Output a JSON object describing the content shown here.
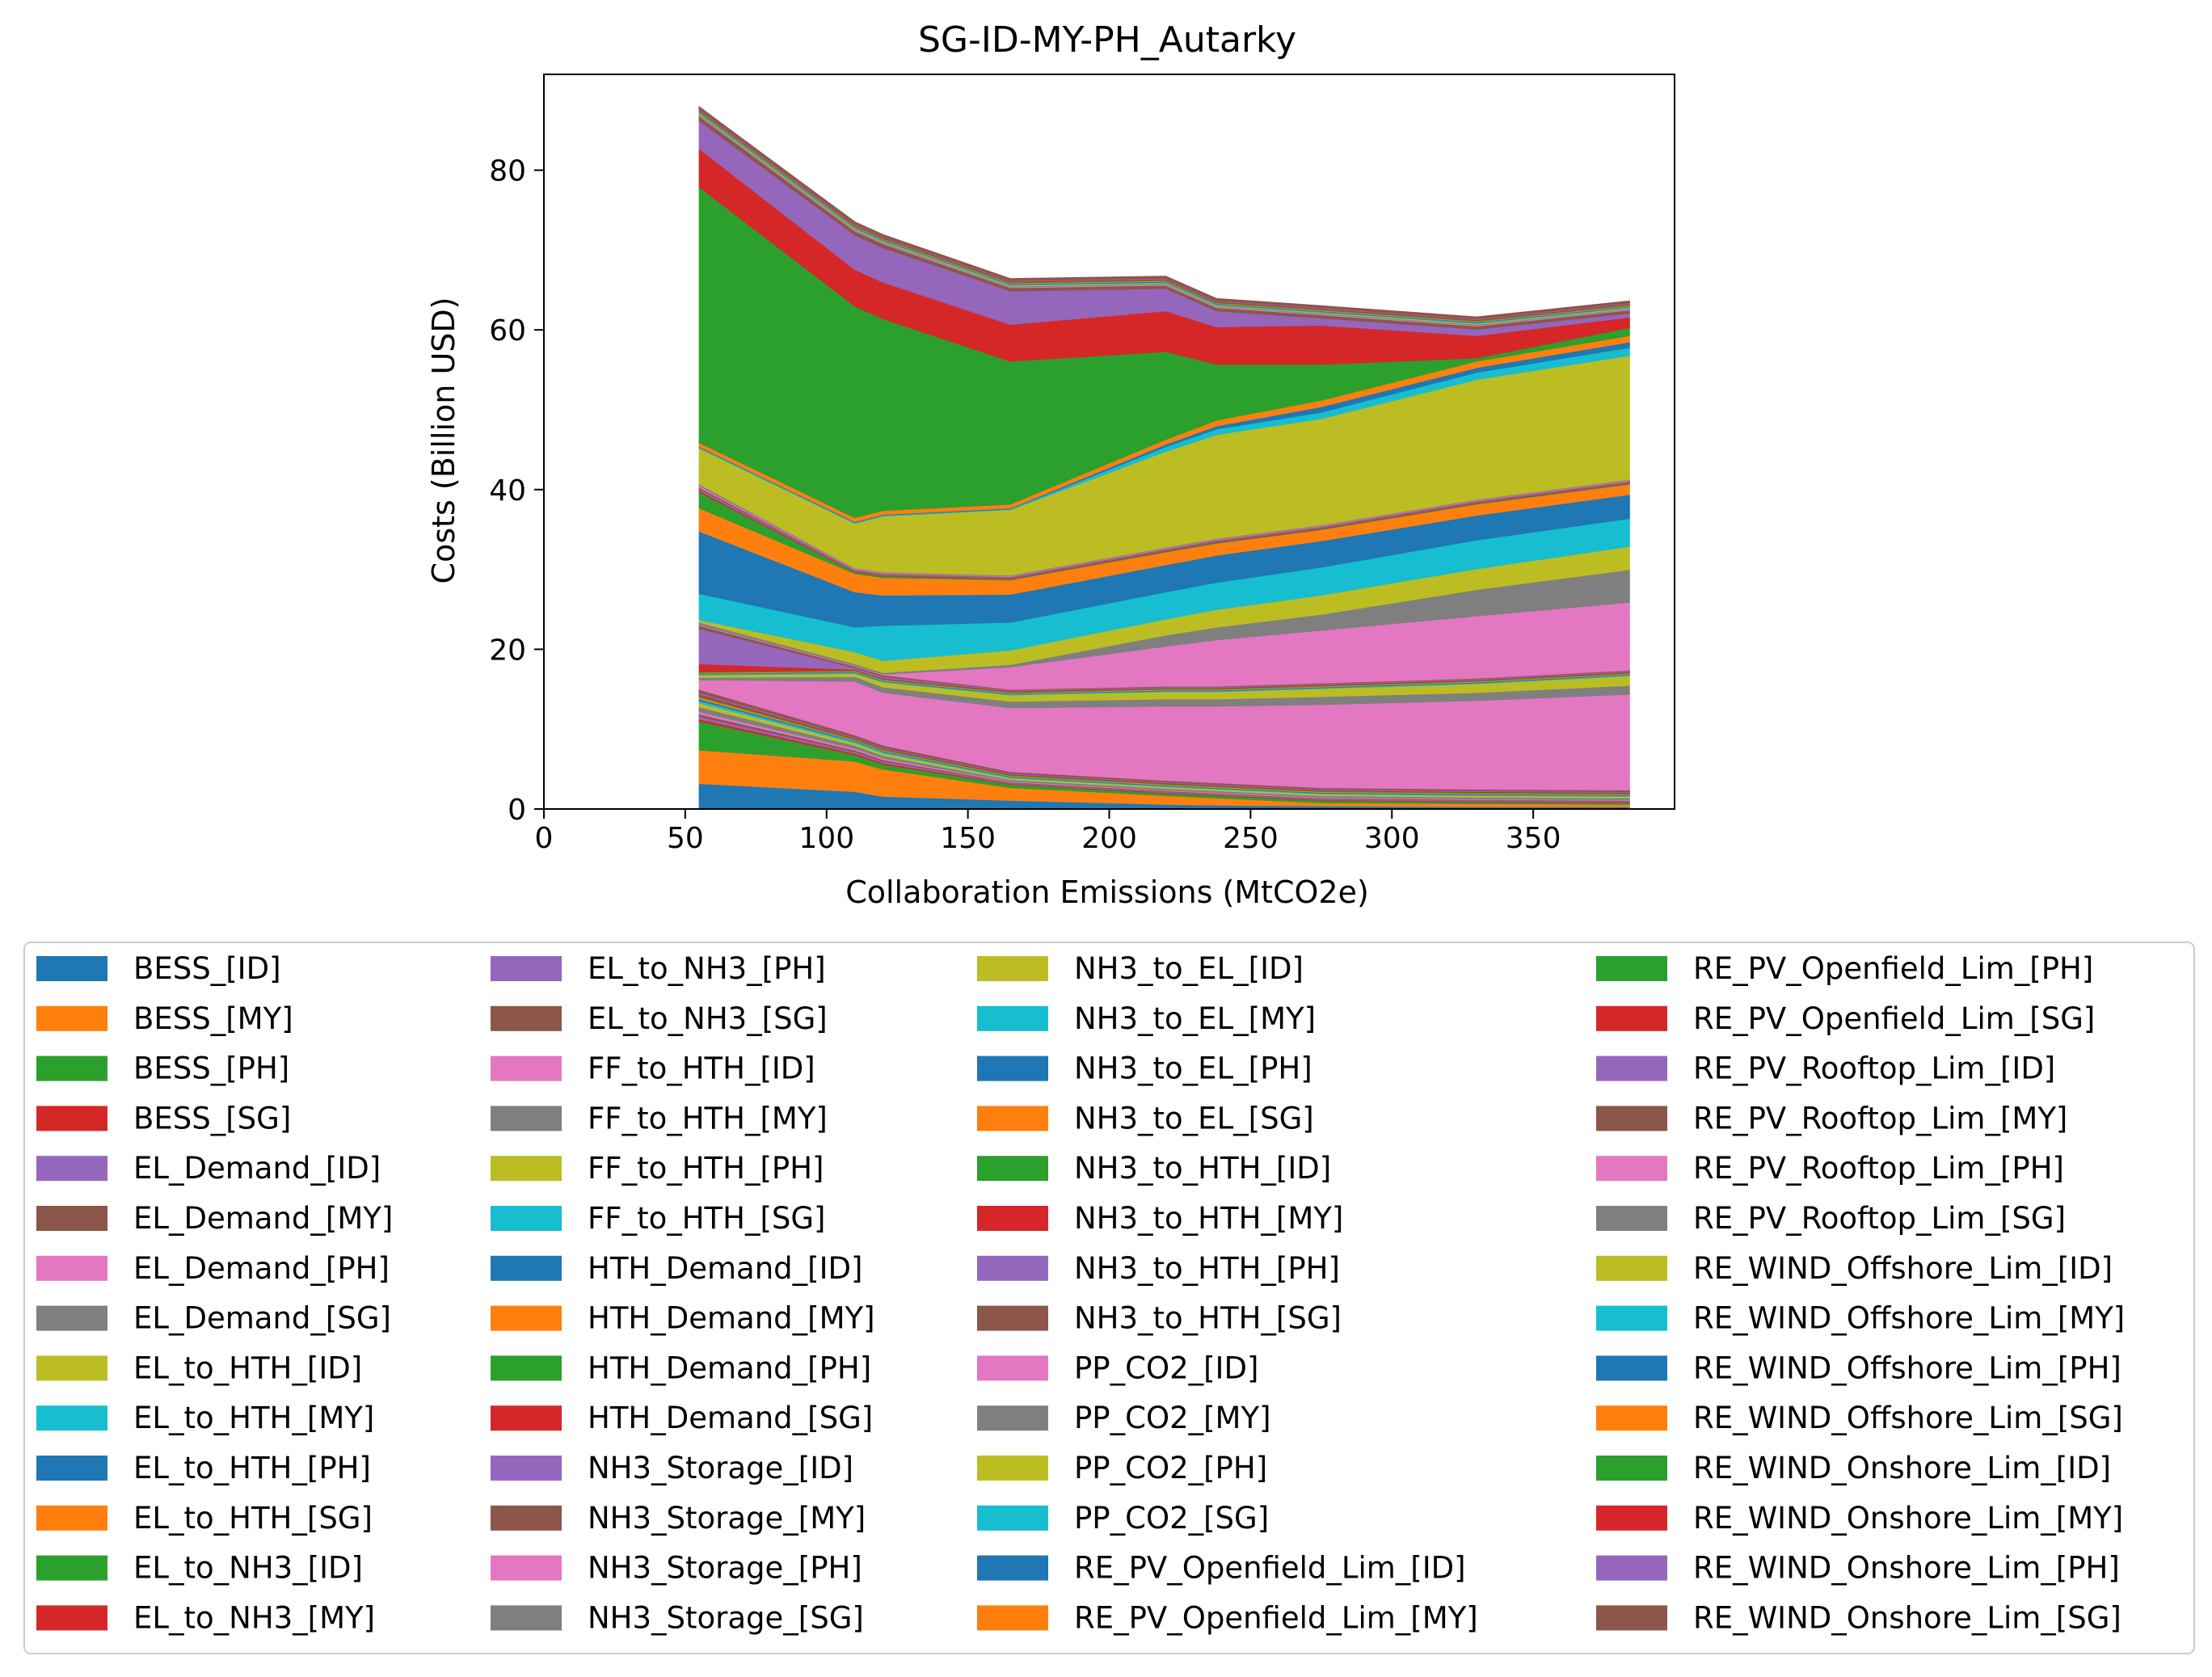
{
  "chart_data": {
    "type": "area",
    "stacked": true,
    "title": "SG-ID-MY-PH_Autarky",
    "xlabel": "Collaboration Emissions (MtCO2e)",
    "ylabel": "Costs (Billion USD)",
    "xlim": [
      0,
      400
    ],
    "ylim": [
      0,
      92
    ],
    "xticks": [
      0,
      50,
      100,
      150,
      200,
      250,
      300,
      350
    ],
    "yticks": [
      0,
      20,
      40,
      60,
      80
    ],
    "grid": false,
    "legend_position": "bottom",
    "x": [
      55,
      110,
      120,
      165,
      220,
      238,
      275,
      330,
      384
    ],
    "series": [
      {
        "name": "BESS_[ID]",
        "color": "#1f77b4",
        "values": [
          3.2,
          2.2,
          1.6,
          1.1,
          0.6,
          0.5,
          0.4,
          0.3,
          0.3
        ]
      },
      {
        "name": "BESS_[MY]",
        "color": "#ff7f0e",
        "values": [
          4.2,
          3.8,
          3.4,
          1.6,
          1.1,
          0.9,
          0.4,
          0.4,
          0.3
        ]
      },
      {
        "name": "BESS_[PH]",
        "color": "#2ca02c",
        "values": [
          3.6,
          0.8,
          0.6,
          0.4,
          0.3,
          0.3,
          0.3,
          0.2,
          0.2
        ]
      },
      {
        "name": "BESS_[SG]",
        "color": "#d62728",
        "values": [
          0.3,
          0.2,
          0.2,
          0.1,
          0.1,
          0.1,
          0.1,
          0.1,
          0.1
        ]
      },
      {
        "name": "EL_Demand_[ID]",
        "color": "#9467bd",
        "values": [
          0.3,
          0.2,
          0.2,
          0.1,
          0.1,
          0.1,
          0.1,
          0.1,
          0.1
        ]
      },
      {
        "name": "EL_Demand_[MY]",
        "color": "#8c564b",
        "values": [
          0.3,
          0.2,
          0.2,
          0.1,
          0.1,
          0.1,
          0.1,
          0.1,
          0.1
        ]
      },
      {
        "name": "EL_Demand_[PH]",
        "color": "#e377c2",
        "values": [
          0.3,
          0.2,
          0.2,
          0.1,
          0.1,
          0.1,
          0.1,
          0.1,
          0.1
        ]
      },
      {
        "name": "EL_Demand_[SG]",
        "color": "#7f7f7f",
        "values": [
          0.6,
          0.4,
          0.3,
          0.2,
          0.2,
          0.2,
          0.2,
          0.2,
          0.2
        ]
      },
      {
        "name": "EL_to_HTH_[ID]",
        "color": "#bcbd22",
        "values": [
          0.5,
          0.3,
          0.3,
          0.2,
          0.2,
          0.2,
          0.2,
          0.2,
          0.2
        ]
      },
      {
        "name": "EL_to_HTH_[MY]",
        "color": "#17becf",
        "values": [
          0.3,
          0.2,
          0.2,
          0.1,
          0.1,
          0.1,
          0.1,
          0.1,
          0.1
        ]
      },
      {
        "name": "EL_to_HTH_[PH]",
        "color": "#1f77b4",
        "values": [
          0.2,
          0.1,
          0.1,
          0.1,
          0.1,
          0.1,
          0.1,
          0.1,
          0.1
        ]
      },
      {
        "name": "EL_to_HTH_[SG]",
        "color": "#ff7f0e",
        "values": [
          0.2,
          0.1,
          0.1,
          0.1,
          0.1,
          0.1,
          0.1,
          0.1,
          0.1
        ]
      },
      {
        "name": "EL_to_NH3_[ID]",
        "color": "#2ca02c",
        "values": [
          0.2,
          0.1,
          0.1,
          0.1,
          0.1,
          0.1,
          0.1,
          0.1,
          0.1
        ]
      },
      {
        "name": "EL_to_NH3_[MY]",
        "color": "#d62728",
        "values": [
          0.2,
          0.1,
          0.1,
          0.1,
          0.1,
          0.1,
          0.1,
          0.1,
          0.1
        ]
      },
      {
        "name": "EL_to_NH3_[PH]",
        "color": "#9467bd",
        "values": [
          0.2,
          0.1,
          0.1,
          0.1,
          0.1,
          0.1,
          0.1,
          0.1,
          0.1
        ]
      },
      {
        "name": "EL_to_NH3_[SG]",
        "color": "#8c564b",
        "values": [
          0.4,
          0.3,
          0.3,
          0.2,
          0.2,
          0.2,
          0.2,
          0.2,
          0.2
        ]
      },
      {
        "name": "FF_to_HTH_[ID]",
        "color": "#e377c2",
        "values": [
          1.2,
          6.7,
          6.6,
          8.0,
          9.3,
          9.6,
          10.4,
          11.1,
          12.0
        ]
      },
      {
        "name": "FF_to_HTH_[MY]",
        "color": "#7f7f7f",
        "values": [
          0.3,
          0.6,
          0.7,
          0.8,
          0.9,
          0.9,
          1.0,
          1.0,
          1.1
        ]
      },
      {
        "name": "FF_to_HTH_[PH]",
        "color": "#bcbd22",
        "values": [
          0.3,
          0.4,
          0.6,
          0.8,
          0.9,
          0.9,
          1.0,
          1.1,
          1.2
        ]
      },
      {
        "name": "FF_to_HTH_[SG]",
        "color": "#17becf",
        "values": [
          0.1,
          0.1,
          0.1,
          0.1,
          0.1,
          0.1,
          0.1,
          0.1,
          0.1
        ]
      },
      {
        "name": "HTH_Demand_[ID]",
        "color": "#1f77b4",
        "values": [
          0.1,
          0.1,
          0.1,
          0.1,
          0.1,
          0.1,
          0.1,
          0.1,
          0.1
        ]
      },
      {
        "name": "HTH_Demand_[MY]",
        "color": "#ff7f0e",
        "values": [
          0.1,
          0.1,
          0.1,
          0.1,
          0.1,
          0.1,
          0.1,
          0.1,
          0.1
        ]
      },
      {
        "name": "HTH_Demand_[PH]",
        "color": "#2ca02c",
        "values": [
          0.1,
          0.1,
          0.1,
          0.1,
          0.1,
          0.1,
          0.1,
          0.1,
          0.1
        ]
      },
      {
        "name": "HTH_Demand_[SG]",
        "color": "#d62728",
        "values": [
          1.0,
          0.1,
          0.1,
          0.1,
          0.1,
          0.1,
          0.1,
          0.1,
          0.1
        ]
      },
      {
        "name": "NH3_Storage_[ID]",
        "color": "#9467bd",
        "values": [
          4.4,
          0.2,
          0.2,
          0.1,
          0.1,
          0.1,
          0.1,
          0.1,
          0.1
        ]
      },
      {
        "name": "NH3_Storage_[MY]",
        "color": "#8c564b",
        "values": [
          0.4,
          0.2,
          0.2,
          0.1,
          0.1,
          0.1,
          0.1,
          0.1,
          0.1
        ]
      },
      {
        "name": "NH3_Storage_[PH]",
        "color": "#e377c2",
        "values": [
          0.1,
          0.1,
          0.1,
          2.8,
          5.0,
          5.8,
          6.6,
          7.8,
          8.5
        ]
      },
      {
        "name": "NH3_Storage_[SG]",
        "color": "#7f7f7f",
        "values": [
          0.3,
          0.2,
          0.2,
          0.3,
          1.4,
          1.6,
          2.0,
          3.3,
          4.1
        ]
      },
      {
        "name": "NH3_to_EL_[ID]",
        "color": "#bcbd22",
        "values": [
          0.3,
          1.5,
          1.5,
          1.8,
          2.0,
          2.2,
          2.4,
          2.6,
          2.9
        ]
      },
      {
        "name": "NH3_to_EL_[MY]",
        "color": "#17becf",
        "values": [
          3.3,
          3.1,
          4.4,
          3.5,
          3.4,
          3.4,
          3.5,
          3.6,
          3.5
        ]
      },
      {
        "name": "NH3_to_EL_[PH]",
        "color": "#1f77b4",
        "values": [
          7.8,
          4.4,
          3.8,
          3.5,
          3.4,
          3.4,
          3.3,
          3.1,
          3.0
        ]
      },
      {
        "name": "NH3_to_EL_[SG]",
        "color": "#ff7f0e",
        "values": [
          2.9,
          2.3,
          2.2,
          1.8,
          1.6,
          1.5,
          1.4,
          1.4,
          1.3
        ]
      },
      {
        "name": "NH3_to_HTH_[ID]",
        "color": "#2ca02c",
        "values": [
          2.0,
          0.2,
          0.2,
          0.1,
          0.1,
          0.1,
          0.1,
          0.1,
          0.1
        ]
      },
      {
        "name": "NH3_to_HTH_[MY]",
        "color": "#d62728",
        "values": [
          0.2,
          0.1,
          0.1,
          0.1,
          0.1,
          0.1,
          0.1,
          0.1,
          0.1
        ]
      },
      {
        "name": "NH3_to_HTH_[PH]",
        "color": "#9467bd",
        "values": [
          0.2,
          0.1,
          0.1,
          0.1,
          0.1,
          0.1,
          0.1,
          0.1,
          0.1
        ]
      },
      {
        "name": "NH3_to_HTH_[SG]",
        "color": "#8c564b",
        "values": [
          0.2,
          0.1,
          0.1,
          0.1,
          0.1,
          0.1,
          0.1,
          0.1,
          0.1
        ]
      },
      {
        "name": "PP_CO2_[ID]",
        "color": "#e377c2",
        "values": [
          0.2,
          0.1,
          0.1,
          0.1,
          0.1,
          0.1,
          0.1,
          0.1,
          0.1
        ]
      },
      {
        "name": "PP_CO2_[MY]",
        "color": "#7f7f7f",
        "values": [
          0.2,
          0.1,
          0.1,
          0.1,
          0.1,
          0.1,
          0.1,
          0.1,
          0.1
        ]
      },
      {
        "name": "PP_CO2_[PH]",
        "color": "#bcbd22",
        "values": [
          4.5,
          5.6,
          7.0,
          8.2,
          12.0,
          13.0,
          13.3,
          15.0,
          15.5
        ]
      },
      {
        "name": "PP_CO2_[SG]",
        "color": "#17becf",
        "values": [
          0.1,
          0.1,
          0.1,
          0.1,
          0.6,
          0.7,
          0.8,
          0.9,
          1.0
        ]
      },
      {
        "name": "RE_PV_Openfield_Lim_[ID]",
        "color": "#1f77b4",
        "values": [
          0.1,
          0.1,
          0.1,
          0.1,
          0.3,
          0.4,
          0.7,
          0.6,
          0.7
        ]
      },
      {
        "name": "RE_PV_Openfield_Lim_[MY]",
        "color": "#ff7f0e",
        "values": [
          0.5,
          0.5,
          0.5,
          0.5,
          0.6,
          0.7,
          0.8,
          0.8,
          0.8
        ]
      },
      {
        "name": "RE_PV_Openfield_Lim_[PH]",
        "color": "#2ca02c",
        "values": [
          32.0,
          26.5,
          24.0,
          17.9,
          11.0,
          7.0,
          4.5,
          0.4,
          1.0
        ]
      },
      {
        "name": "RE_PV_Openfield_Lim_[SG]",
        "color": "#d62728",
        "values": [
          4.8,
          4.6,
          4.6,
          4.6,
          5.1,
          4.7,
          4.9,
          2.8,
          1.3
        ]
      },
      {
        "name": "RE_PV_Rooftop_Lim_[ID]",
        "color": "#9467bd",
        "values": [
          3.5,
          4.3,
          4.3,
          4.2,
          2.8,
          2.0,
          0.9,
          0.8,
          0.5
        ]
      },
      {
        "name": "RE_PV_Rooftop_Lim_[MY]",
        "color": "#8c564b",
        "values": [
          0.6,
          0.5,
          0.5,
          0.4,
          0.4,
          0.4,
          0.4,
          0.4,
          0.4
        ]
      },
      {
        "name": "RE_PV_Rooftop_Lim_[PH]",
        "color": "#e377c2",
        "values": [
          0.1,
          0.1,
          0.1,
          0.1,
          0.1,
          0.1,
          0.1,
          0.1,
          0.1
        ]
      },
      {
        "name": "RE_PV_Rooftop_Lim_[SG]",
        "color": "#7f7f7f",
        "values": [
          0.1,
          0.1,
          0.1,
          0.1,
          0.1,
          0.1,
          0.1,
          0.1,
          0.1
        ]
      },
      {
        "name": "RE_WIND_Offshore_Lim_[ID]",
        "color": "#bcbd22",
        "values": [
          0.1,
          0.1,
          0.1,
          0.1,
          0.1,
          0.1,
          0.1,
          0.1,
          0.1
        ]
      },
      {
        "name": "RE_WIND_Offshore_Lim_[MY]",
        "color": "#17becf",
        "values": [
          0.1,
          0.1,
          0.1,
          0.1,
          0.1,
          0.1,
          0.1,
          0.1,
          0.1
        ]
      },
      {
        "name": "RE_WIND_Offshore_Lim_[PH]",
        "color": "#1f77b4",
        "values": [
          0.1,
          0.1,
          0.1,
          0.1,
          0.1,
          0.1,
          0.1,
          0.1,
          0.1
        ]
      },
      {
        "name": "RE_WIND_Offshore_Lim_[SG]",
        "color": "#ff7f0e",
        "values": [
          0.1,
          0.1,
          0.1,
          0.1,
          0.1,
          0.1,
          0.1,
          0.1,
          0.1
        ]
      },
      {
        "name": "RE_WIND_Onshore_Lim_[ID]",
        "color": "#2ca02c",
        "values": [
          0.1,
          0.1,
          0.1,
          0.1,
          0.1,
          0.1,
          0.1,
          0.1,
          0.1
        ]
      },
      {
        "name": "RE_WIND_Onshore_Lim_[MY]",
        "color": "#d62728",
        "values": [
          0.1,
          0.1,
          0.1,
          0.1,
          0.1,
          0.1,
          0.1,
          0.1,
          0.1
        ]
      },
      {
        "name": "RE_WIND_Onshore_Lim_[PH]",
        "color": "#9467bd",
        "values": [
          0.1,
          0.1,
          0.1,
          0.1,
          0.1,
          0.1,
          0.1,
          0.1,
          0.1
        ]
      },
      {
        "name": "RE_WIND_Onshore_Lim_[SG]",
        "color": "#8c564b",
        "values": [
          0.2,
          0.2,
          0.2,
          0.2,
          0.2,
          0.2,
          0.2,
          0.2,
          0.2
        ]
      }
    ]
  }
}
